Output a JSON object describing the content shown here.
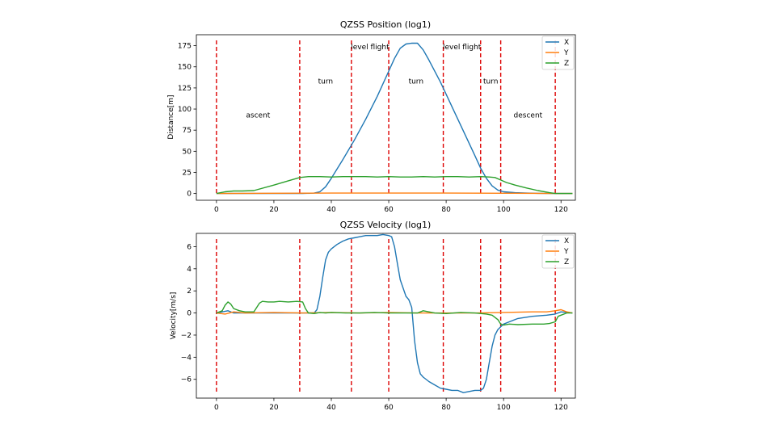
{
  "chart_data": [
    {
      "type": "line",
      "title": "QZSS Position (log1)",
      "xlabel": "",
      "ylabel": "Distance[m]",
      "xlim": [
        -7,
        125
      ],
      "ylim": [
        -8,
        188
      ],
      "xticks": [
        0,
        20,
        40,
        60,
        80,
        100,
        120
      ],
      "yticks": [
        0,
        25,
        50,
        75,
        100,
        125,
        150,
        175
      ],
      "legend": "top-right",
      "phase_lines": [
        0,
        29,
        47,
        60,
        79,
        92,
        99,
        118
      ],
      "phase_line_color": "#dd0000",
      "phase_labels": [
        {
          "text": "ascent",
          "x": 14.5,
          "y": 90
        },
        {
          "text": "turn",
          "x": 38,
          "y": 130
        },
        {
          "text": "level flight",
          "x": 53.5,
          "y": 171
        },
        {
          "text": "turn",
          "x": 69.5,
          "y": 130
        },
        {
          "text": "level flight",
          "x": 85.5,
          "y": 171
        },
        {
          "text": "turn",
          "x": 95.5,
          "y": 130
        },
        {
          "text": "descent",
          "x": 108.5,
          "y": 90
        }
      ],
      "series": [
        {
          "name": "X",
          "color": "#1f77b4",
          "x": [
            0,
            10,
            20,
            30,
            34,
            36,
            38,
            40,
            44,
            48,
            52,
            56,
            60,
            62,
            64,
            66,
            68,
            70,
            72,
            74,
            78,
            82,
            86,
            90,
            92,
            94,
            96,
            98,
            100,
            104,
            108,
            112,
            116,
            120,
            124
          ],
          "y": [
            0,
            0,
            0,
            0,
            0.5,
            2,
            8,
            18,
            40,
            63,
            88,
            115,
            145,
            160,
            172,
            177,
            178,
            178,
            170,
            158,
            132,
            103,
            74,
            45,
            30,
            18,
            9,
            4,
            2,
            1,
            0.5,
            0.2,
            0,
            0,
            0
          ]
        },
        {
          "name": "Y",
          "color": "#ff7f0e",
          "x": [
            0,
            20,
            40,
            60,
            80,
            100,
            120,
            124
          ],
          "y": [
            0,
            0.3,
            0.5,
            0.5,
            0.5,
            0.3,
            0,
            0
          ]
        },
        {
          "name": "Z",
          "color": "#2ca02c",
          "x": [
            0,
            3,
            6,
            9,
            13,
            20,
            25,
            29,
            32,
            36,
            40,
            44,
            48,
            52,
            56,
            60,
            64,
            68,
            72,
            76,
            80,
            84,
            88,
            92,
            95,
            97,
            99,
            101,
            104,
            108,
            112,
            116,
            118,
            120,
            124
          ],
          "y": [
            0,
            2,
            3,
            3,
            3.5,
            10,
            15,
            19,
            20,
            20,
            19.5,
            20,
            20,
            20,
            19.5,
            20,
            19.5,
            19.5,
            20,
            19.5,
            20,
            20,
            19.5,
            20,
            19.5,
            19,
            16,
            13,
            10,
            6.5,
            3.5,
            1,
            0,
            0,
            0
          ]
        }
      ]
    },
    {
      "type": "line",
      "title": "QZSS  Velocity (log1)",
      "xlabel": "",
      "ylabel": "Velocity[m/s]",
      "xlim": [
        -7,
        125
      ],
      "ylim": [
        -7.7,
        7.2
      ],
      "xticks": [
        0,
        20,
        40,
        60,
        80,
        100,
        120
      ],
      "yticks": [
        -6,
        -4,
        -2,
        0,
        2,
        4,
        6
      ],
      "legend": "top-right",
      "phase_lines": [
        0,
        29,
        47,
        60,
        79,
        92,
        99,
        118
      ],
      "phase_line_color": "#dd0000",
      "series": [
        {
          "name": "X",
          "color": "#1f77b4",
          "x": [
            0,
            2,
            4,
            6,
            10,
            20,
            30,
            34,
            35,
            36,
            37,
            38,
            39,
            40,
            42,
            44,
            46,
            48,
            50,
            52,
            54,
            56,
            58,
            60,
            61,
            62,
            63,
            64,
            66,
            67,
            68,
            69,
            70,
            71,
            72,
            74,
            76,
            78,
            80,
            82,
            84,
            86,
            88,
            90,
            92,
            93,
            94,
            95,
            96,
            97,
            98,
            100,
            102,
            105,
            110,
            115,
            118,
            120,
            124
          ],
          "y": [
            0,
            0.1,
            0.2,
            0,
            0,
            0,
            0,
            0,
            0.3,
            1.5,
            3.2,
            4.8,
            5.5,
            5.8,
            6.2,
            6.5,
            6.7,
            6.8,
            6.9,
            7.0,
            7.0,
            7.0,
            7.1,
            7.0,
            6.9,
            6.0,
            4.5,
            3.0,
            1.5,
            1.2,
            0.5,
            -2.5,
            -4.5,
            -5.5,
            -5.8,
            -6.2,
            -6.5,
            -6.8,
            -6.9,
            -7.0,
            -7.0,
            -7.2,
            -7.1,
            -7.0,
            -7.0,
            -6.8,
            -6.0,
            -4.5,
            -3.0,
            -2.0,
            -1.5,
            -1.0,
            -0.8,
            -0.5,
            -0.3,
            -0.2,
            -0.1,
            0.1,
            0
          ]
        },
        {
          "name": "Y",
          "color": "#ff7f0e",
          "x": [
            0,
            3,
            6,
            10,
            20,
            30,
            40,
            50,
            60,
            70,
            80,
            90,
            100,
            110,
            115,
            118,
            120,
            122,
            124
          ],
          "y": [
            0,
            -0.1,
            0.1,
            0,
            0.05,
            0,
            0.05,
            0,
            0.05,
            0,
            0,
            0,
            0.05,
            0.1,
            0.1,
            0.2,
            0.3,
            0.1,
            0
          ]
        },
        {
          "name": "Z",
          "color": "#2ca02c",
          "x": [
            0,
            2,
            3,
            4,
            5,
            6,
            8,
            10,
            13,
            15,
            16,
            18,
            20,
            22,
            25,
            28,
            30,
            31,
            32,
            34,
            36,
            38,
            40,
            45,
            50,
            55,
            60,
            65,
            70,
            72,
            74,
            76,
            80,
            85,
            90,
            94,
            96,
            98,
            99,
            100,
            102,
            105,
            110,
            114,
            116,
            118,
            119,
            120,
            122,
            124
          ],
          "y": [
            0,
            0.2,
            0.7,
            1.0,
            0.8,
            0.4,
            0.2,
            0.1,
            0.1,
            0.9,
            1.05,
            1.0,
            1.0,
            1.05,
            1.0,
            1.05,
            1.0,
            0.4,
            0.0,
            -0.05,
            0.05,
            0.0,
            0.05,
            0.0,
            0.0,
            0.05,
            0.0,
            0.0,
            0.0,
            0.2,
            0.1,
            0.0,
            -0.05,
            0.05,
            0.0,
            -0.1,
            -0.2,
            -0.6,
            -1.0,
            -1.1,
            -1.0,
            -1.05,
            -1.0,
            -1.0,
            -0.95,
            -0.8,
            -0.3,
            -0.2,
            0.0,
            0.0
          ]
        }
      ]
    }
  ]
}
